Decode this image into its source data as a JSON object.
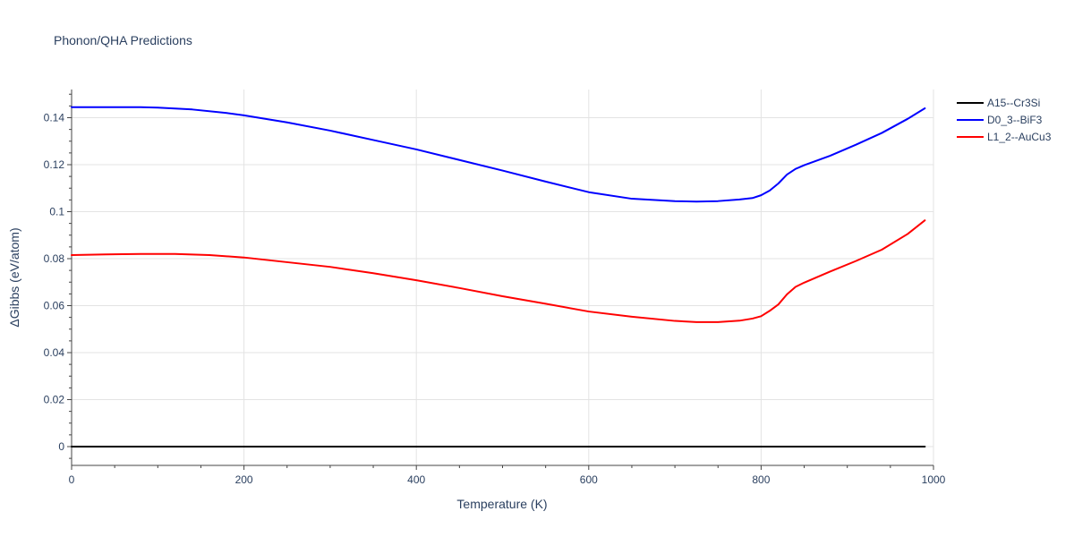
{
  "chart_data": {
    "type": "line",
    "title": "Phonon/QHA Predictions",
    "xlabel": "Temperature (K)",
    "ylabel": "ΔGibbs (eV/atom)",
    "xlim": [
      0,
      1000
    ],
    "ylim": [
      -0.008,
      0.152
    ],
    "x_ticks": [
      0,
      200,
      400,
      600,
      800,
      1000
    ],
    "x_tick_labels": [
      "0",
      "200",
      "400",
      "600",
      "800",
      "1000"
    ],
    "y_ticks": [
      0,
      0.02,
      0.04,
      0.06,
      0.08,
      0.1,
      0.12,
      0.14
    ],
    "y_tick_labels": [
      "0",
      "0.02",
      "0.04",
      "0.06",
      "0.08",
      "0.1",
      "0.12",
      "0.14"
    ],
    "grid": true,
    "legend_position": "top-right",
    "series": [
      {
        "name": "A15--Cr3Si",
        "color": "#000000",
        "x": [
          0,
          990
        ],
        "y": [
          0,
          0
        ]
      },
      {
        "name": "D0_3--BiF3",
        "color": "#0000ff",
        "x": [
          0,
          40,
          80,
          100,
          140,
          180,
          200,
          250,
          300,
          350,
          400,
          450,
          500,
          550,
          600,
          650,
          700,
          725,
          750,
          775,
          790,
          800,
          810,
          820,
          830,
          840,
          850,
          880,
          910,
          940,
          970,
          990
        ],
        "y": [
          0.1445,
          0.1445,
          0.1445,
          0.1443,
          0.1435,
          0.142,
          0.141,
          0.138,
          0.1345,
          0.1305,
          0.1265,
          0.122,
          0.1175,
          0.1128,
          0.1083,
          0.1055,
          0.1045,
          0.1043,
          0.1045,
          0.1052,
          0.1058,
          0.107,
          0.109,
          0.112,
          0.1158,
          0.1182,
          0.1198,
          0.1238,
          0.1285,
          0.1335,
          0.1395,
          0.144
        ]
      },
      {
        "name": "L1_2--AuCu3",
        "color": "#ff0000",
        "x": [
          0,
          40,
          80,
          120,
          160,
          200,
          250,
          300,
          350,
          400,
          450,
          500,
          550,
          600,
          650,
          700,
          725,
          750,
          775,
          790,
          800,
          810,
          820,
          830,
          840,
          850,
          880,
          910,
          940,
          970,
          990
        ],
        "y": [
          0.0815,
          0.0818,
          0.082,
          0.082,
          0.0815,
          0.0805,
          0.0785,
          0.0765,
          0.0738,
          0.0708,
          0.0675,
          0.064,
          0.0608,
          0.0575,
          0.0553,
          0.0535,
          0.053,
          0.053,
          0.0536,
          0.0545,
          0.0555,
          0.0578,
          0.0605,
          0.0648,
          0.068,
          0.0698,
          0.0745,
          0.079,
          0.0838,
          0.0905,
          0.0963
        ]
      }
    ]
  }
}
